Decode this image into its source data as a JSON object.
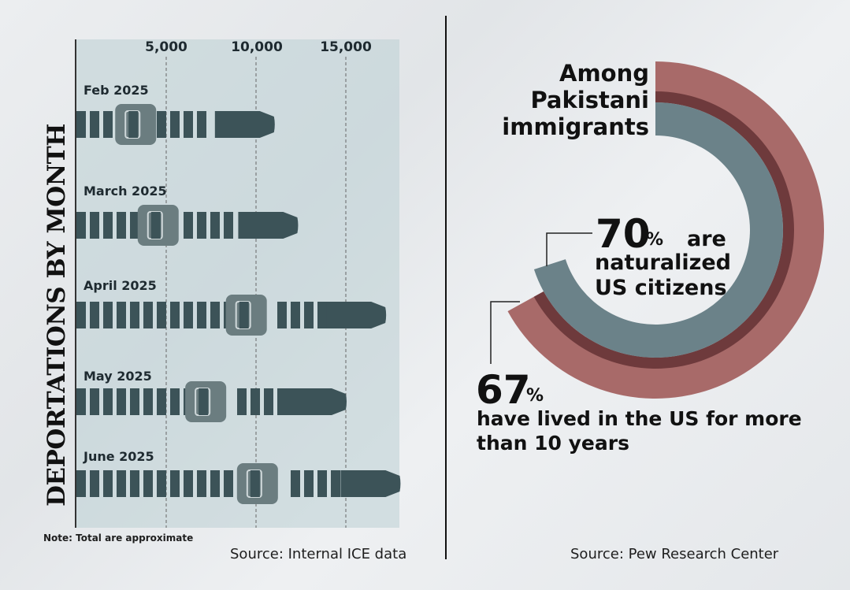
{
  "left": {
    "title": "DEPORTATIONS BY MONTH",
    "note": "Note: Total are approximate",
    "source": "Source: Internal ICE data"
  },
  "right": {
    "heading_lines": [
      "Among",
      "Pakistani",
      "immigrants"
    ],
    "stat1_value": "70",
    "stat1_pct": "%",
    "stat1_text": [
      "are",
      "naturalized",
      "US citizens"
    ],
    "stat2_value": "67",
    "stat2_pct": "%",
    "stat2_text": [
      "have lived in the US for more",
      "than 10 years"
    ],
    "source": "Source: Pew Research Center"
  },
  "colors": {
    "belt": "#3c5358",
    "buckle": "#6b7d80",
    "outer_ring": "#a86a69",
    "ring_gap": "#6e3a3c",
    "inner_ring": "#6b8289",
    "panel": "#bcd0d4"
  },
  "chart_data": [
    {
      "type": "bar",
      "title": "DEPORTATIONS BY MONTH",
      "orientation": "horizontal",
      "categories": [
        "Feb 2025",
        "March 2025",
        "April 2025",
        "May 2025",
        "June 2025"
      ],
      "values": [
        11000,
        12300,
        17200,
        15000,
        18000
      ],
      "xticks": [
        5000,
        10000,
        15000
      ],
      "xtick_labels": [
        "5,000",
        "10,000",
        "15,000"
      ],
      "xlim": [
        0,
        18000
      ],
      "grid": true
    },
    {
      "type": "pie",
      "title": "Among Pakistani immigrants",
      "series": [
        {
          "name": "have lived in the US for more than 10 years",
          "value": 67
        },
        {
          "name": "are naturalized US citizens",
          "value": 70
        }
      ]
    }
  ]
}
